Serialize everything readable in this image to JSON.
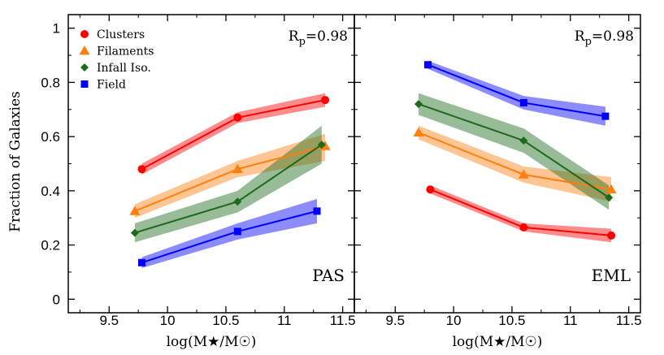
{
  "chart_data": {
    "type": "line",
    "ylabel": "Fraction of Galaxies",
    "xlabel": "log(M★/M☉)",
    "xlim": [
      9.15,
      11.6
    ],
    "ylim": [
      -0.05,
      1.05
    ],
    "xticks": [
      "9.5",
      "10",
      "10.5",
      "11",
      "11.5"
    ],
    "yticks": [
      "0",
      "0.2",
      "0.4",
      "0.6",
      "0.8",
      "1"
    ],
    "legend": {
      "placement": "top-left"
    },
    "panels": [
      {
        "label": "PAS",
        "rp": "R_p=0.98",
        "series": [
          {
            "name": "Clusters",
            "color": "#ff0000",
            "marker": "circle",
            "x": [
              9.78,
              10.6,
              11.35
            ],
            "y": [
              0.48,
              0.67,
              0.735
            ],
            "band": [
              [
                0.46,
                0.5
              ],
              [
                0.65,
                0.69
              ],
              [
                0.71,
                0.76
              ]
            ]
          },
          {
            "name": "Filaments",
            "color": "#ff7f0e",
            "marker": "triangle",
            "x": [
              9.72,
              10.6,
              11.35
            ],
            "y": [
              0.325,
              0.48,
              0.565
            ],
            "band": [
              [
                0.3,
                0.35
              ],
              [
                0.45,
                0.51
              ],
              [
                0.51,
                0.61
              ]
            ]
          },
          {
            "name": "Infall Iso.",
            "color": "#1a6b1a",
            "marker": "diamond",
            "x": [
              9.72,
              10.6,
              11.32
            ],
            "y": [
              0.245,
              0.36,
              0.57
            ],
            "band": [
              [
                0.21,
                0.28
              ],
              [
                0.32,
                0.4
              ],
              [
                0.5,
                0.64
              ]
            ]
          },
          {
            "name": "Field",
            "color": "#0000ff",
            "marker": "square",
            "x": [
              9.78,
              10.6,
              11.28
            ],
            "y": [
              0.135,
              0.25,
              0.325
            ],
            "band": [
              [
                0.115,
                0.155
              ],
              [
                0.22,
                0.28
              ],
              [
                0.28,
                0.37
              ]
            ]
          }
        ]
      },
      {
        "label": "EML",
        "rp": "R_p=0.98",
        "series": [
          {
            "name": "Clusters",
            "color": "#ff0000",
            "marker": "circle",
            "x": [
              9.8,
              10.6,
              11.35
            ],
            "y": [
              0.405,
              0.265,
              0.235
            ],
            "band": [
              [
                0.39,
                0.42
              ],
              [
                0.25,
                0.28
              ],
              [
                0.21,
                0.26
              ]
            ]
          },
          {
            "name": "Filaments",
            "color": "#ff7f0e",
            "marker": "triangle",
            "x": [
              9.7,
              10.6,
              11.35
            ],
            "y": [
              0.615,
              0.46,
              0.405
            ],
            "band": [
              [
                0.59,
                0.64
              ],
              [
                0.43,
                0.49
              ],
              [
                0.36,
                0.45
              ]
            ]
          },
          {
            "name": "Infall Iso.",
            "color": "#1a6b1a",
            "marker": "diamond",
            "x": [
              9.7,
              10.6,
              11.33
            ],
            "y": [
              0.72,
              0.585,
              0.375
            ],
            "band": [
              [
                0.68,
                0.76
              ],
              [
                0.54,
                0.63
              ],
              [
                0.33,
                0.42
              ]
            ]
          },
          {
            "name": "Field",
            "color": "#0000ff",
            "marker": "square",
            "x": [
              9.78,
              10.6,
              11.3
            ],
            "y": [
              0.865,
              0.725,
              0.675
            ],
            "band": [
              [
                0.85,
                0.88
              ],
              [
                0.7,
                0.75
              ],
              [
                0.64,
                0.71
              ]
            ]
          }
        ]
      }
    ]
  }
}
